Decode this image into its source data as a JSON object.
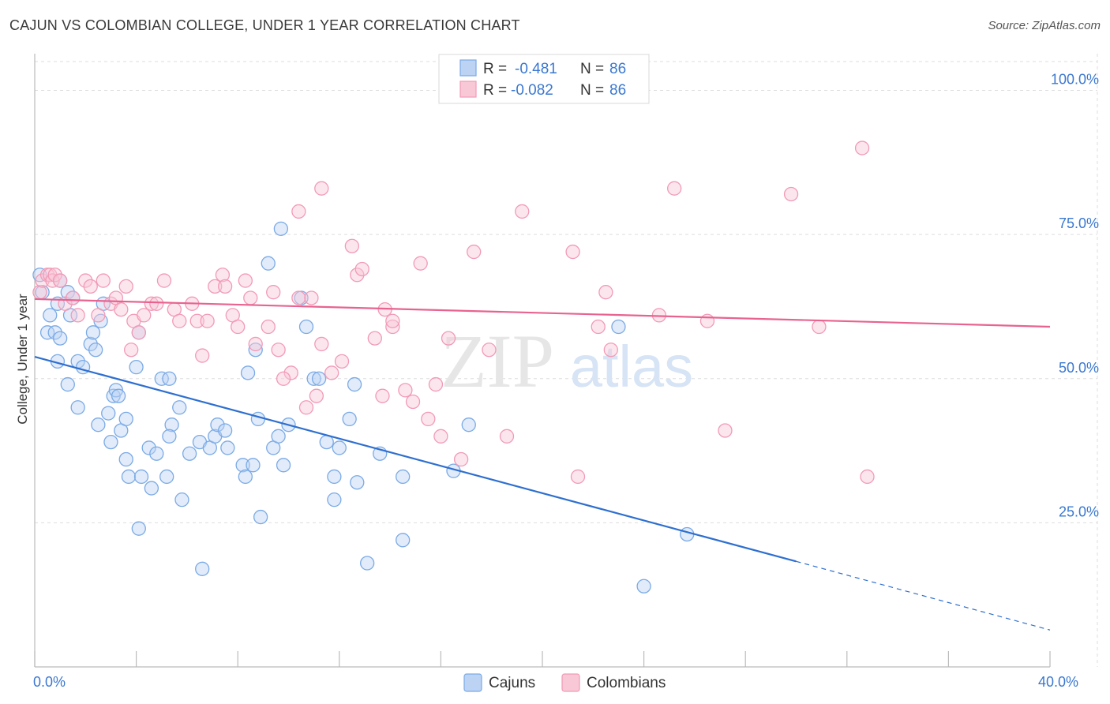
{
  "header": {
    "title": "CAJUN VS COLOMBIAN COLLEGE, UNDER 1 YEAR CORRELATION CHART",
    "source": "Source: ZipAtlas.com"
  },
  "colors": {
    "cajun": "#7aaae6",
    "cajun_fill": "#bcd3f3",
    "colombian": "#f29ab6",
    "colombian_fill": "#f9c8d6",
    "cajun_line": "#2e6fcf",
    "colombian_line": "#e8638f",
    "tick_text": "#3a78d0",
    "grid": "#dddddd"
  },
  "watermark": {
    "zip": "ZIP",
    "atlas": "atlas"
  },
  "chart_data": {
    "type": "scatter",
    "title": "CAJUN VS COLOMBIAN COLLEGE, UNDER 1 YEAR CORRELATION CHART",
    "xlabel": "",
    "ylabel": "College, Under 1 year",
    "xlim": [
      0,
      40
    ],
    "ylim": [
      0,
      105
    ],
    "x_tick_labels": [
      {
        "value": 0,
        "label": "0.0%"
      },
      {
        "value": 40,
        "label": "40.0%"
      }
    ],
    "y_tick_labels": [
      {
        "value": 25,
        "label": "25.0%"
      },
      {
        "value": 50,
        "label": "50.0%"
      },
      {
        "value": 75,
        "label": "75.0%"
      },
      {
        "value": 100,
        "label": "100.0%"
      }
    ],
    "grid": true,
    "legend_stats": [
      {
        "series": "Cajuns",
        "r_label": "R =",
        "r_value": "-0.481",
        "n_label": "N =",
        "n_value": "86"
      },
      {
        "series": "Colombians",
        "r_label": "R =",
        "r_value": "-0.082",
        "n_label": "N =",
        "n_value": "86"
      }
    ],
    "series": [
      {
        "name": "Cajuns",
        "trend": {
          "x0": 0,
          "y0": 53.8,
          "x1": 30.0,
          "y1": 18.3,
          "x_dashed_end": 40,
          "y_dashed_end": 6.4
        },
        "points": [
          [
            0.2,
            68
          ],
          [
            0.3,
            65
          ],
          [
            0.6,
            61
          ],
          [
            0.5,
            58
          ],
          [
            0.8,
            58
          ],
          [
            1.0,
            57
          ],
          [
            0.9,
            63
          ],
          [
            1.3,
            65
          ],
          [
            1.5,
            64
          ],
          [
            1.4,
            61
          ],
          [
            1.7,
            53
          ],
          [
            1.9,
            52
          ],
          [
            2.2,
            56
          ],
          [
            2.3,
            58
          ],
          [
            2.6,
            60
          ],
          [
            2.7,
            63
          ],
          [
            1.3,
            49
          ],
          [
            1.7,
            45
          ],
          [
            2.5,
            42
          ],
          [
            2.9,
            44
          ],
          [
            3.1,
            47
          ],
          [
            3.2,
            48
          ],
          [
            3.4,
            41
          ],
          [
            3.6,
            43
          ],
          [
            4.0,
            52
          ],
          [
            4.1,
            58
          ],
          [
            4.5,
            38
          ],
          [
            4.8,
            37
          ],
          [
            5.0,
            50
          ],
          [
            5.3,
            50
          ],
          [
            5.4,
            42
          ],
          [
            5.7,
            45
          ],
          [
            6.1,
            37
          ],
          [
            6.5,
            39
          ],
          [
            6.9,
            38
          ],
          [
            7.1,
            40
          ],
          [
            7.2,
            42
          ],
          [
            7.5,
            41
          ],
          [
            7.6,
            38
          ],
          [
            3.6,
            36
          ],
          [
            3.7,
            33
          ],
          [
            4.2,
            33
          ],
          [
            4.6,
            31
          ],
          [
            5.2,
            33
          ],
          [
            5.8,
            29
          ],
          [
            8.2,
            35
          ],
          [
            8.3,
            33
          ],
          [
            8.6,
            35
          ],
          [
            8.8,
            43
          ],
          [
            8.7,
            55
          ],
          [
            8.9,
            26
          ],
          [
            9.4,
            38
          ],
          [
            9.6,
            40
          ],
          [
            9.8,
            35
          ],
          [
            10.0,
            42
          ],
          [
            10.5,
            64
          ],
          [
            10.7,
            59
          ],
          [
            11.0,
            50
          ],
          [
            11.2,
            50
          ],
          [
            11.5,
            39
          ],
          [
            11.8,
            33
          ],
          [
            12.0,
            38
          ],
          [
            11.8,
            29
          ],
          [
            12.4,
            43
          ],
          [
            12.6,
            49
          ],
          [
            12.7,
            32
          ],
          [
            13.1,
            18
          ],
          [
            13.6,
            37
          ],
          [
            14.5,
            22
          ],
          [
            14.5,
            33
          ],
          [
            16.5,
            34
          ],
          [
            17.1,
            42
          ],
          [
            23.0,
            59
          ],
          [
            24.0,
            14
          ],
          [
            25.7,
            23
          ],
          [
            6.6,
            17
          ],
          [
            4.1,
            24
          ],
          [
            9.2,
            70
          ],
          [
            9.7,
            76
          ],
          [
            2.4,
            55
          ],
          [
            1.0,
            67
          ],
          [
            3.3,
            47
          ],
          [
            5.3,
            40
          ],
          [
            8.4,
            51
          ],
          [
            3.0,
            39
          ],
          [
            0.9,
            53
          ]
        ]
      },
      {
        "name": "Colombians",
        "trend": {
          "x0": 0,
          "y0": 63.8,
          "x1": 40,
          "y1": 59.0
        },
        "points": [
          [
            0.2,
            65
          ],
          [
            0.3,
            67
          ],
          [
            0.5,
            68
          ],
          [
            0.6,
            68
          ],
          [
            0.7,
            67
          ],
          [
            0.8,
            68
          ],
          [
            1.0,
            67
          ],
          [
            1.2,
            63
          ],
          [
            1.5,
            64
          ],
          [
            1.7,
            61
          ],
          [
            2.0,
            67
          ],
          [
            2.2,
            66
          ],
          [
            2.5,
            61
          ],
          [
            2.7,
            67
          ],
          [
            3.0,
            63
          ],
          [
            3.2,
            64
          ],
          [
            3.4,
            62
          ],
          [
            3.6,
            66
          ],
          [
            3.9,
            60
          ],
          [
            4.1,
            58
          ],
          [
            4.3,
            61
          ],
          [
            4.6,
            63
          ],
          [
            4.8,
            63
          ],
          [
            5.1,
            67
          ],
          [
            5.5,
            62
          ],
          [
            5.7,
            60
          ],
          [
            6.2,
            63
          ],
          [
            6.4,
            60
          ],
          [
            6.8,
            60
          ],
          [
            7.1,
            66
          ],
          [
            7.4,
            68
          ],
          [
            7.5,
            66
          ],
          [
            7.8,
            61
          ],
          [
            8.0,
            59
          ],
          [
            8.3,
            67
          ],
          [
            8.5,
            64
          ],
          [
            8.7,
            56
          ],
          [
            9.2,
            59
          ],
          [
            9.4,
            65
          ],
          [
            9.6,
            55
          ],
          [
            10.1,
            51
          ],
          [
            10.4,
            64
          ],
          [
            10.7,
            45
          ],
          [
            10.9,
            64
          ],
          [
            11.1,
            47
          ],
          [
            11.3,
            56
          ],
          [
            11.7,
            51
          ],
          [
            12.1,
            53
          ],
          [
            12.5,
            73
          ],
          [
            12.7,
            68
          ],
          [
            12.9,
            69
          ],
          [
            13.4,
            57
          ],
          [
            13.7,
            47
          ],
          [
            14.1,
            59
          ],
          [
            14.6,
            48
          ],
          [
            14.9,
            46
          ],
          [
            15.2,
            70
          ],
          [
            15.5,
            43
          ],
          [
            15.8,
            49
          ],
          [
            16.3,
            57
          ],
          [
            16.8,
            36
          ],
          [
            17.3,
            72
          ],
          [
            17.9,
            55
          ],
          [
            18.6,
            40
          ],
          [
            19.2,
            79
          ],
          [
            21.2,
            72
          ],
          [
            21.4,
            33
          ],
          [
            22.2,
            59
          ],
          [
            22.5,
            65
          ],
          [
            22.7,
            55
          ],
          [
            24.6,
            61
          ],
          [
            25.2,
            83
          ],
          [
            26.5,
            60
          ],
          [
            27.2,
            41
          ],
          [
            29.8,
            82
          ],
          [
            32.6,
            90
          ],
          [
            32.8,
            33
          ],
          [
            30.9,
            59
          ],
          [
            11.3,
            83
          ],
          [
            10.4,
            79
          ],
          [
            14.1,
            60
          ],
          [
            13.8,
            62
          ],
          [
            16.0,
            40
          ],
          [
            9.8,
            50
          ],
          [
            6.6,
            54
          ],
          [
            3.8,
            55
          ]
        ]
      }
    ]
  },
  "legend": {
    "items": [
      "Cajuns",
      "Colombians"
    ]
  }
}
